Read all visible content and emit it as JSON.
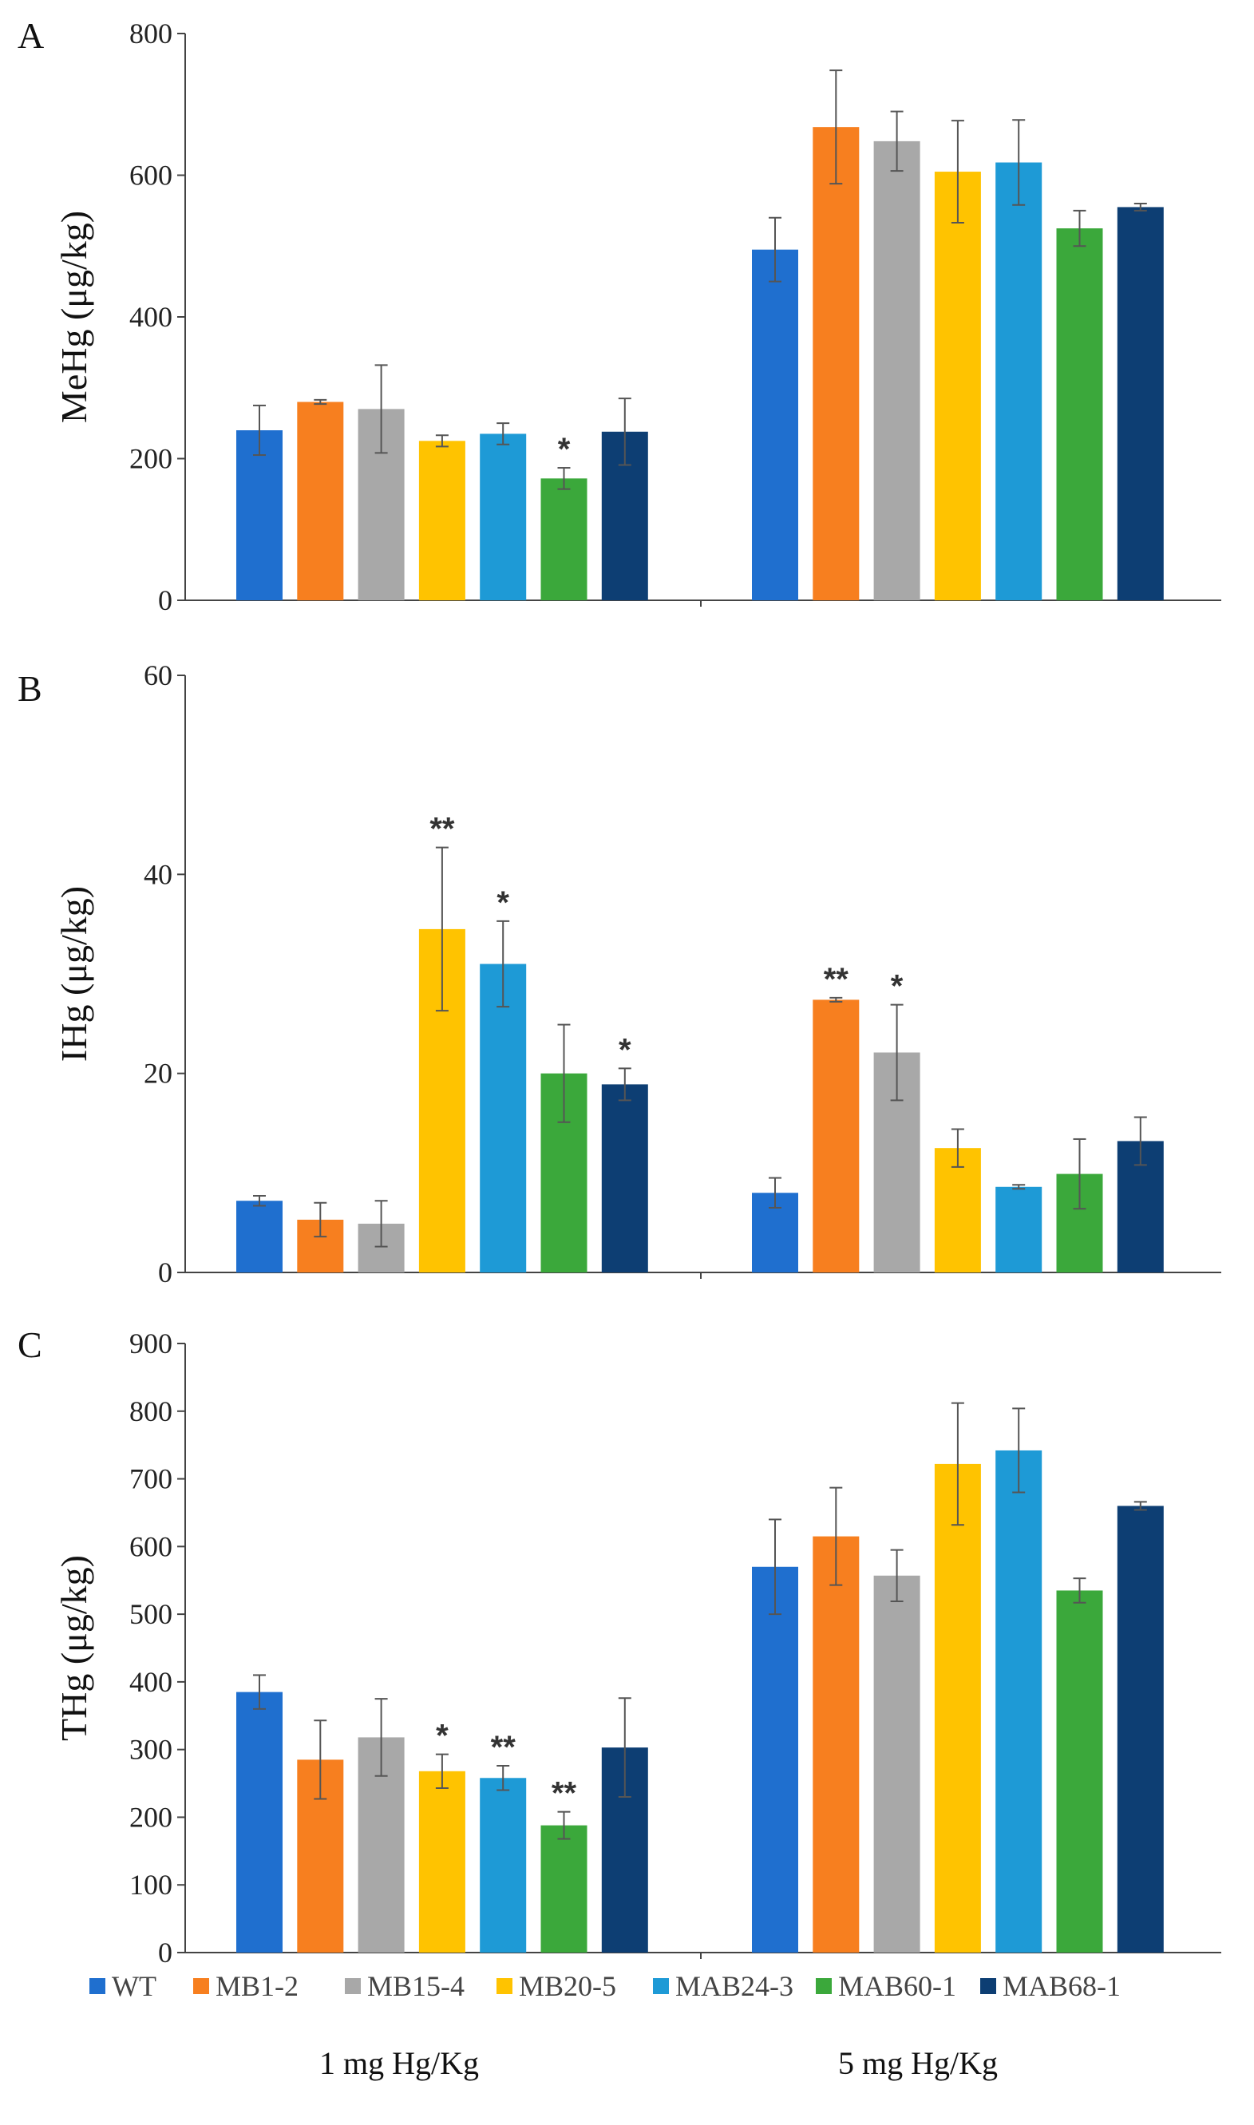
{
  "chart_data": [
    {
      "type": "bar",
      "panel_label": "A",
      "ylabel": "MeHg (μg/kg)",
      "ylim": [
        0,
        800
      ],
      "yticks": [
        "0",
        "200",
        "400",
        "600",
        "800"
      ],
      "categories": [
        "1 mg Hg/Kg",
        "5 mg Hg/Kg"
      ],
      "series": [
        {
          "name": "WT",
          "color": "#1f6fcf",
          "values": [
            240,
            495
          ],
          "errors": [
            35,
            45
          ],
          "sig": [
            "",
            ""
          ]
        },
        {
          "name": "MB1-2",
          "color": "#f77f1f",
          "values": [
            280,
            668
          ],
          "errors": [
            3,
            80
          ],
          "sig": [
            "",
            ""
          ]
        },
        {
          "name": "MB15-4",
          "color": "#a8a8a8",
          "values": [
            270,
            648
          ],
          "errors": [
            62,
            42
          ],
          "sig": [
            "",
            ""
          ]
        },
        {
          "name": "MB20-5",
          "color": "#ffc300",
          "values": [
            225,
            605
          ],
          "errors": [
            8,
            72
          ],
          "sig": [
            "",
            ""
          ]
        },
        {
          "name": "MAB24-3",
          "color": "#1e9ad6",
          "values": [
            235,
            618
          ],
          "errors": [
            15,
            60
          ],
          "sig": [
            "",
            ""
          ]
        },
        {
          "name": "MAB60-1",
          "color": "#3ba83b",
          "values": [
            172,
            525
          ],
          "errors": [
            15,
            25
          ],
          "sig": [
            "*",
            ""
          ]
        },
        {
          "name": "MAB68-1",
          "color": "#0d3e73",
          "values": [
            238,
            555
          ],
          "errors": [
            47,
            5
          ],
          "sig": [
            "",
            ""
          ]
        }
      ]
    },
    {
      "type": "bar",
      "panel_label": "B",
      "ylabel": "IHg (μg/kg)",
      "ylim": [
        0,
        60
      ],
      "yticks": [
        "0",
        "20",
        "40",
        "60"
      ],
      "categories": [
        "1 mg Hg/Kg",
        "5 mg Hg/Kg"
      ],
      "series": [
        {
          "name": "WT",
          "color": "#1f6fcf",
          "values": [
            7.2,
            8.0
          ],
          "errors": [
            0.5,
            1.5
          ],
          "sig": [
            "",
            ""
          ]
        },
        {
          "name": "MB1-2",
          "color": "#f77f1f",
          "values": [
            5.3,
            27.4
          ],
          "errors": [
            1.7,
            0.2
          ],
          "sig": [
            "",
            "**"
          ]
        },
        {
          "name": "MB15-4",
          "color": "#a8a8a8",
          "values": [
            4.9,
            22.1
          ],
          "errors": [
            2.3,
            4.8
          ],
          "sig": [
            "",
            "*"
          ]
        },
        {
          "name": "MB20-5",
          "color": "#ffc300",
          "values": [
            34.5,
            12.5
          ],
          "errors": [
            8.2,
            1.9
          ],
          "sig": [
            "**",
            ""
          ]
        },
        {
          "name": "MAB24-3",
          "color": "#1e9ad6",
          "values": [
            31.0,
            8.6
          ],
          "errors": [
            4.3,
            0.2
          ],
          "sig": [
            "*",
            ""
          ]
        },
        {
          "name": "MAB60-1",
          "color": "#3ba83b",
          "values": [
            20.0,
            9.9
          ],
          "errors": [
            4.9,
            3.5
          ],
          "sig": [
            "",
            ""
          ]
        },
        {
          "name": "MAB68-1",
          "color": "#0d3e73",
          "values": [
            18.9,
            13.2
          ],
          "errors": [
            1.6,
            2.4
          ],
          "sig": [
            "*",
            ""
          ]
        }
      ]
    },
    {
      "type": "bar",
      "panel_label": "C",
      "ylabel": "THg (μg/kg)",
      "ylim": [
        0,
        900
      ],
      "yticks": [
        "0",
        "100",
        "200",
        "300",
        "400",
        "500",
        "600",
        "700",
        "800",
        "900"
      ],
      "categories": [
        "1 mg Hg/Kg",
        "5 mg Hg/Kg"
      ],
      "series": [
        {
          "name": "WT",
          "color": "#1f6fcf",
          "values": [
            385,
            570
          ],
          "errors": [
            25,
            70
          ],
          "sig": [
            "",
            ""
          ]
        },
        {
          "name": "MB1-2",
          "color": "#f77f1f",
          "values": [
            285,
            615
          ],
          "errors": [
            58,
            72
          ],
          "sig": [
            "",
            ""
          ]
        },
        {
          "name": "MB15-4",
          "color": "#a8a8a8",
          "values": [
            318,
            557
          ],
          "errors": [
            57,
            38
          ],
          "sig": [
            "",
            ""
          ]
        },
        {
          "name": "MB20-5",
          "color": "#ffc300",
          "values": [
            268,
            722
          ],
          "errors": [
            25,
            90
          ],
          "sig": [
            "*",
            ""
          ]
        },
        {
          "name": "MAB24-3",
          "color": "#1e9ad6",
          "values": [
            258,
            742
          ],
          "errors": [
            18,
            62
          ],
          "sig": [
            "**",
            ""
          ]
        },
        {
          "name": "MAB60-1",
          "color": "#3ba83b",
          "values": [
            188,
            535
          ],
          "errors": [
            20,
            18
          ],
          "sig": [
            "**",
            ""
          ]
        },
        {
          "name": "MAB68-1",
          "color": "#0d3e73",
          "values": [
            303,
            660
          ],
          "errors": [
            73,
            6
          ],
          "sig": [
            "",
            ""
          ]
        }
      ]
    }
  ],
  "legend": [
    {
      "label": "WT",
      "color": "#1f6fcf"
    },
    {
      "label": "MB1-2",
      "color": "#f77f1f"
    },
    {
      "label": "MB15-4",
      "color": "#a8a8a8"
    },
    {
      "label": "MB20-5",
      "color": "#ffc300"
    },
    {
      "label": "MAB24-3",
      "color": "#1e9ad6"
    },
    {
      "label": "MAB60-1",
      "color": "#3ba83b"
    },
    {
      "label": "MAB68-1",
      "color": "#0d3e73"
    }
  ],
  "x_groups": [
    "1 mg Hg/Kg",
    "5 mg Hg/Kg"
  ]
}
